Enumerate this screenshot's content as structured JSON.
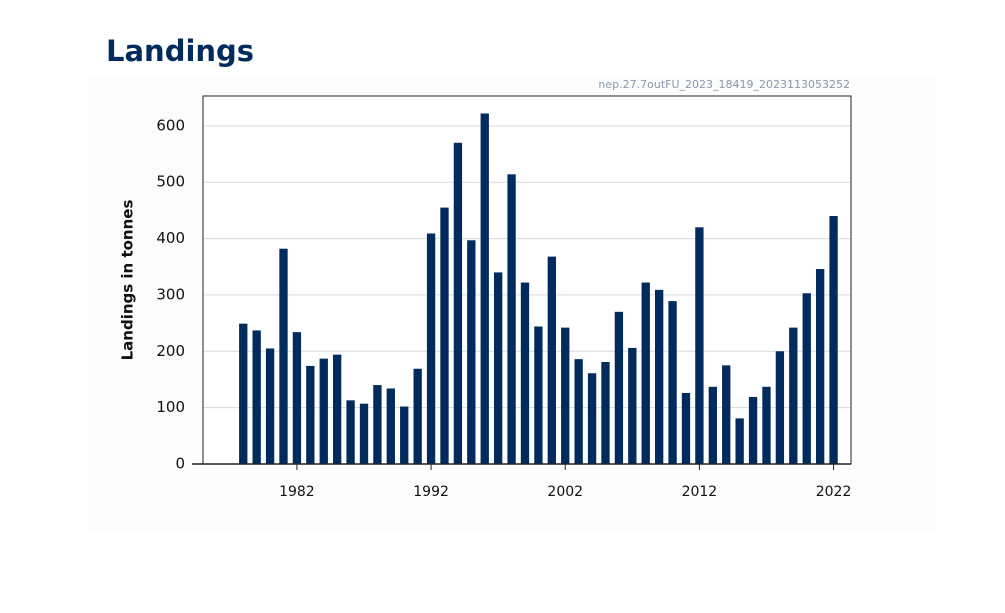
{
  "chart_data": {
    "type": "bar",
    "title": "Landings",
    "subtitle": "nep.27.7outFU_2023_18419_2023113053252",
    "ylabel": "Landings in tonnes",
    "color": "#002b5c",
    "grid": true,
    "x": [
      1978,
      1979,
      1980,
      1981,
      1982,
      1983,
      1984,
      1985,
      1986,
      1987,
      1988,
      1989,
      1990,
      1991,
      1992,
      1993,
      1994,
      1995,
      1996,
      1997,
      1998,
      1999,
      2000,
      2001,
      2002,
      2003,
      2004,
      2005,
      2006,
      2007,
      2008,
      2009,
      2010,
      2011,
      2012,
      2013,
      2014,
      2015,
      2016,
      2017,
      2018,
      2019,
      2020,
      2021,
      2022
    ],
    "values": [
      249,
      237,
      205,
      382,
      234,
      174,
      187,
      194,
      113,
      107,
      140,
      134,
      102,
      169,
      409,
      455,
      570,
      397,
      622,
      340,
      514,
      322,
      244,
      368,
      242,
      186,
      161,
      181,
      270,
      206,
      322,
      309,
      289,
      126,
      420,
      137,
      175,
      81,
      119,
      137,
      200,
      242,
      303,
      346,
      440
    ],
    "xlim": [
      1975,
      2023.3
    ],
    "xticks": [
      1982,
      1992,
      2002,
      2012,
      2022
    ],
    "ylim": [
      0,
      653
    ],
    "yticks": [
      0,
      100,
      200,
      300,
      400,
      500,
      600
    ]
  }
}
